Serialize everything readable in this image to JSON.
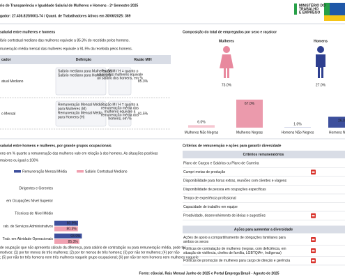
{
  "header": {
    "title": "rio de Transparência e Igualdade Salarial de Mulheres e Homens - 2º Semestre 2025",
    "subtitle": "gador: 27.436.815/0001-74   /   Quant. de Trabalhadores Ativos em 30/06/2025: 369",
    "ministry": [
      "MINISTÉRIO DO",
      "TRABALHO",
      "E EMPREGO"
    ]
  },
  "pay_gap": {
    "title": "salarial entre mulheres e homens",
    "notes": [
      "lário contratual mediano das mulheres equivale a 85.3% do recebido pelos homens.",
      "muneração média mensal das mulheres equivale a 91.5% da recebida pelos homens."
    ],
    "columns": [
      "cador",
      "Definição",
      "Razão M/H"
    ],
    "rows": [
      {
        "indicator": "atual Mediano",
        "left": [
          "Salário mediano para Mulheres (M)",
          "Salário mediano para Homens (H)"
        ],
        "right": [
          "Razão M / H = quanto o",
          "salário das mulheres equivale",
          "ao salário dos homens, em %"
        ],
        "ratio": "85.3%"
      },
      {
        "indicator": "o Mensal",
        "left": [
          "Remuneração Mensal Média",
          "para Mulheres (M)",
          "Remuneração Mensal Média",
          "para Homens (H)"
        ],
        "right": [
          "Razão M / H = quanto a",
          "remuneração média das",
          "mulheres equivale à",
          "remuneração média dos",
          "homens, em %"
        ],
        "ratio": "91.5%"
      }
    ]
  },
  "sex_totals": [
    {
      "name": "Mulheres",
      "label": "73.0%",
      "color": "#e8899e"
    },
    {
      "name": "Homens",
      "label": "27.0%",
      "color": "#2e3f8f"
    }
  ],
  "chart_data": [
    {
      "type": "bar",
      "title": "Composição do total de empregados por sexo e raça/cor",
      "categories": [
        "Mulheres Não Negras",
        "Mulheres Negras",
        "Homens Não Negros",
        "Homens Negros"
      ],
      "values": [
        6.0,
        67.0,
        1.0,
        26.0
      ],
      "value_labels": [
        "6.0%",
        "67.0%",
        "1.0%",
        "26.0"
      ],
      "colors": [
        "#f6c7d1",
        "#eb9aac",
        "#b3bbd9",
        "#3d4f9c"
      ]
    },
    {
      "type": "hbar",
      "title": "salarial entre homens e mulheres, por grande grupos ocupacionais",
      "subtitle": [
        "ens em % quanto a remuneração das mulheres vale em relação à dos homens. As situações positivas",
        "maiores ou igual a 100%"
      ],
      "categories": [
        "Dirigentes e Gerentes",
        "em Ocupações Nível Superior",
        "Técnicos de Nível Médio",
        "rab. de Serviços Administrativos",
        "Trab. em Atividade Operacionais"
      ],
      "series": [
        {
          "name": "Remuneração Mensal Média",
          "color": "#3d4f9c",
          "values": [
            null,
            null,
            null,
            80.9,
            93.9
          ],
          "value_labels": [
            null,
            null,
            null,
            "80.9%",
            "93.9%"
          ]
        },
        {
          "name": "Salário Contratual Mediano",
          "color": "#f0a0b0",
          "values": [
            null,
            null,
            null,
            80.3,
            85.3
          ],
          "value_labels": [
            null,
            null,
            null,
            "80.3%",
            "85.3%"
          ]
        }
      ],
      "note": [
        "de ocupação que não apresenta cálculo da diferença, para salário de contratação ou para remuneração média, pode ter",
        "motivos: (1) por ter menos de três mulheres; (2) por ter menos de três homens; (3) por não ter mulheres; (4) por não",
        "; (5) por não ter três homens nem três mulheres naquele grupo ocupacional; (6) por não ter nem homens nem mulheres naquele"
      ]
    }
  ],
  "criteria": {
    "title": "Critérios de remuneração e ações para garantir diversidade",
    "sections": [
      {
        "header": "Critérios remuneratórios",
        "rows": [
          {
            "lines": [
              "Plano de Cargos e Salários ou Plano de Carreira"
            ],
            "icon": false
          },
          {
            "lines": [
              "Cumpri metas de produção"
            ],
            "icon": true
          },
          {
            "lines": [
              "Disponibilidade para horas extras, reuniões com clientes e viagens"
            ],
            "icon": false
          },
          {
            "lines": [
              "Disponibilidade de pessoa em ocupações específicas"
            ],
            "icon": false
          },
          {
            "lines": [
              "Tempo de experiência profissional"
            ],
            "icon": false
          },
          {
            "lines": [
              "Capacidade de trabalho em equipe"
            ],
            "icon": false
          },
          {
            "lines": [
              "Proatividade, desenvolvimento de ideias e sugestões"
            ],
            "icon": true
          }
        ]
      },
      {
        "header": "Ações para aumentar a diversidade",
        "rows": [
          {
            "lines": [
              "Ações de apoio a compartilhamento de obrigações familiares para",
              "ambos os sexos"
            ],
            "icon": true
          },
          {
            "lines": [
              "Políticas de contratação de mulheres (negras, com deficiência, em",
              "situação de violência, chefes de família, LGBTQIA+, Indígenas)"
            ],
            "icon": true
          },
          {
            "lines": [
              "Políticas de promoção de mulheres para cargo de direção e gerência"
            ],
            "icon": true
          }
        ]
      }
    ]
  },
  "footer": "Fonte: eSocial. Rais Mensal Junho de 2025 e Portal Emprega Brasil - Agosto de 2025"
}
